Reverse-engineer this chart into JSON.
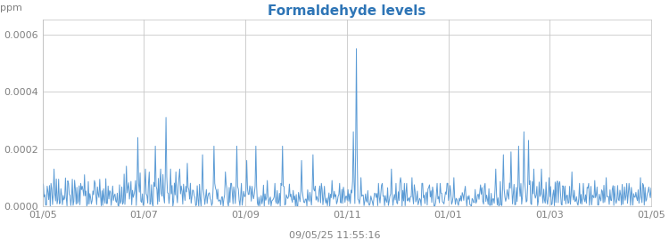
{
  "title": "Formaldehyde levels",
  "ylabel": "ppm",
  "subtitle": "09/05/25 11:55:16",
  "ylim": [
    0,
    0.00065
  ],
  "yticks": [
    0.0,
    0.0002,
    0.0004,
    0.0006
  ],
  "ytick_labels": [
    "0.0000",
    "0.0002",
    "0.0004",
    "0.0006"
  ],
  "xtick_labels": [
    "01/05",
    "01/07",
    "01/09",
    "01/11",
    "01/01",
    "01/03",
    "01/05"
  ],
  "line_color": "#5b9bd5",
  "title_color": "#2e75b6",
  "background_color": "#ffffff",
  "plot_bg_color": "#ffffff",
  "grid_color": "#c8c8c8",
  "tick_label_color": "#808080",
  "line_width": 0.7,
  "title_fontsize": 11,
  "label_fontsize": 8,
  "tick_fontsize": 8
}
